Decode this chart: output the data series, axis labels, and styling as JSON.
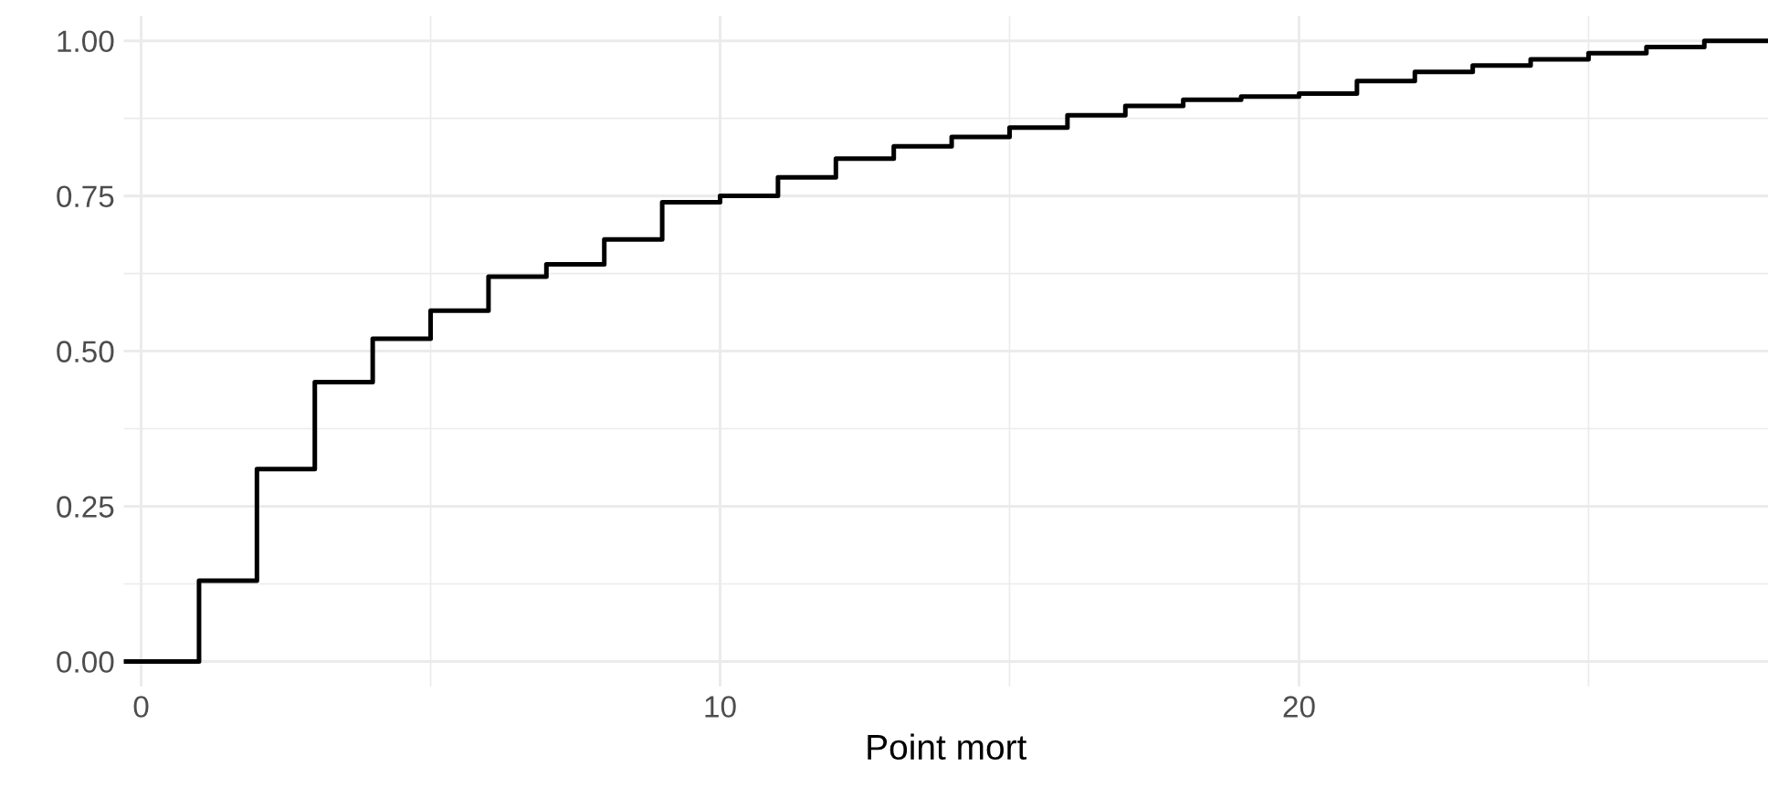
{
  "chart_data": {
    "type": "step",
    "xlabel": "Point mort",
    "x": [
      -0.3,
      1,
      2,
      3,
      4,
      5,
      6,
      7,
      8,
      9,
      10,
      11,
      12,
      13,
      14,
      15,
      16,
      17,
      18,
      19,
      20,
      21,
      22,
      23,
      24,
      25,
      26,
      27,
      28.1
    ],
    "series": [
      {
        "color": "#000000",
        "values": [
          0,
          0.13,
          0.31,
          0.45,
          0.52,
          0.565,
          0.62,
          0.64,
          0.68,
          0.74,
          0.75,
          0.78,
          0.81,
          0.83,
          0.845,
          0.86,
          0.88,
          0.895,
          0.905,
          0.91,
          0.915,
          0.935,
          0.95,
          0.96,
          0.97,
          0.98,
          0.99,
          1.0,
          1.0
        ]
      }
    ],
    "xlim": [
      -0.3,
      28.1
    ],
    "ylim": [
      -0.04,
      1.04
    ],
    "xticks": [
      0,
      {
        "value": 5,
        "label": null
      },
      10,
      {
        "value": 15,
        "label": null
      },
      20,
      {
        "value": 25,
        "label": null
      }
    ],
    "yticks": [
      {
        "value": 0,
        "label": "0.00"
      },
      {
        "value": 0.125,
        "label": null
      },
      {
        "value": 0.25,
        "label": "0.25"
      },
      {
        "value": 0.375,
        "label": null
      },
      {
        "value": 0.5,
        "label": "0.50"
      },
      {
        "value": 0.625,
        "label": null
      },
      {
        "value": 0.75,
        "label": "0.75"
      },
      {
        "value": 0.875,
        "label": null
      },
      {
        "value": 1,
        "label": "1.00"
      }
    ],
    "grid": true
  }
}
